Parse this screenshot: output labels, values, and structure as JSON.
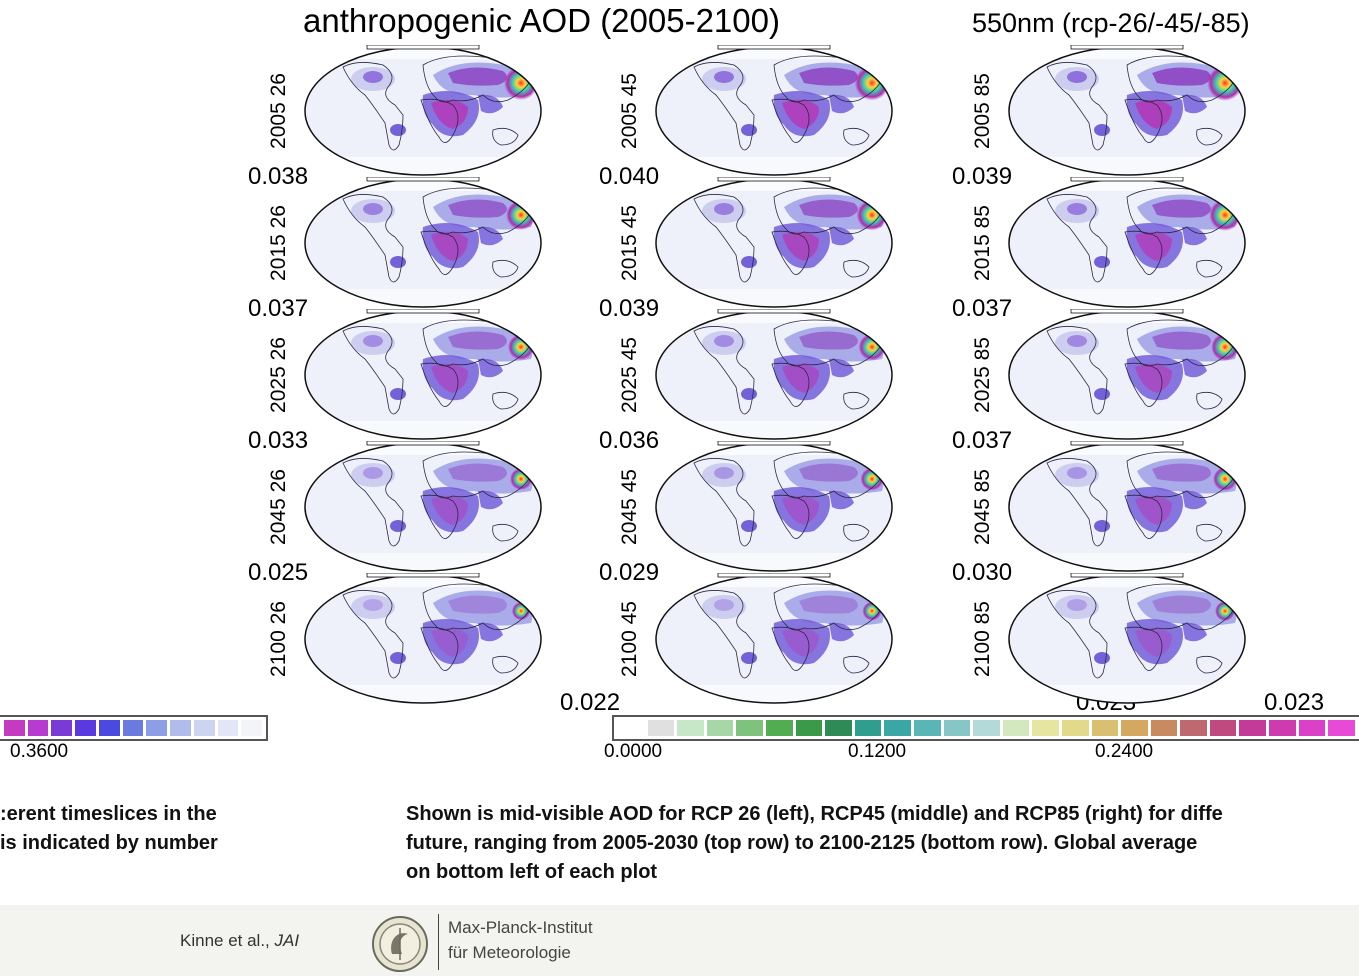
{
  "title_left": "anthropogenic AOD (2005-2100)",
  "title_right": "550nm (rcp-26/-45/-85)",
  "chart_data": {
    "type": "heatmap",
    "title": "anthropogenic AOD (2005-2100)",
    "subtitle": "550nm (rcp-26/-45/-85)",
    "columns": [
      "26",
      "45",
      "85"
    ],
    "rows": [
      "2005",
      "2015",
      "2025",
      "2045",
      "2100"
    ],
    "panel_labels": [
      [
        "2005 26",
        "2005 45",
        "2005 85"
      ],
      [
        "2015 26",
        "2015 45",
        "2015 85"
      ],
      [
        "2025 26",
        "2025 45",
        "2025 85"
      ],
      [
        "2045 26",
        "2045 45",
        "2045 85"
      ],
      [
        "2100 26",
        "2100 45",
        "2100 85"
      ]
    ],
    "global_averages": [
      [
        "0.038",
        "0.040",
        "0.039"
      ],
      [
        "0.037",
        "0.039",
        "0.037"
      ],
      [
        "0.033",
        "0.036",
        "0.037"
      ],
      [
        "0.025",
        "0.029",
        "0.030"
      ],
      [
        "0.022",
        "0.023",
        "0.023"
      ]
    ],
    "colorbar_ticks": [
      "0.0000",
      "0.1200",
      "0.2400"
    ],
    "colorbar_fragment_tick": "0.3600"
  },
  "colors": {
    "ramp": [
      "#ffffff",
      "#e0e0e0",
      "#c8e6c8",
      "#a6d7a6",
      "#7ec27e",
      "#52ad52",
      "#3a9a4a",
      "#2e8b57",
      "#2f9e8f",
      "#3aa6a6",
      "#5ab5b5",
      "#86c6c6",
      "#b3d9d9",
      "#d4e8c0",
      "#e6e6a0",
      "#e3d98a",
      "#d8c070",
      "#d4a860",
      "#c88a60",
      "#c06870",
      "#c04a80",
      "#c43a98",
      "#d03ab0",
      "#dc40c8",
      "#e84ad8"
    ],
    "ramp_high": [
      "#c43ac0",
      "#b83ad0",
      "#7a3ad8",
      "#5a3ae0",
      "#4a4ae0",
      "#6a7ae0",
      "#8e9ee6",
      "#b0bcec",
      "#cdd4f0",
      "#e2e6f6",
      "#f2f4fa"
    ]
  },
  "caption_left": [
    ":erent timeslices in the",
    "is indicated by number"
  ],
  "caption_right": [
    "Shown is mid-visible AOD for RCP 26 (left), RCP45 (middle) and RCP85 (right) for diffe",
    "future, ranging from 2005-2030 (top row) to 2100-2125 (bottom row).  Global average",
    "on bottom left of each plot"
  ],
  "footer": {
    "citation": "Kinne et al., ",
    "citation_journal": "JAI",
    "institute_line1": "Max-Planck-Institut",
    "institute_line2": "für Meteorologie"
  }
}
